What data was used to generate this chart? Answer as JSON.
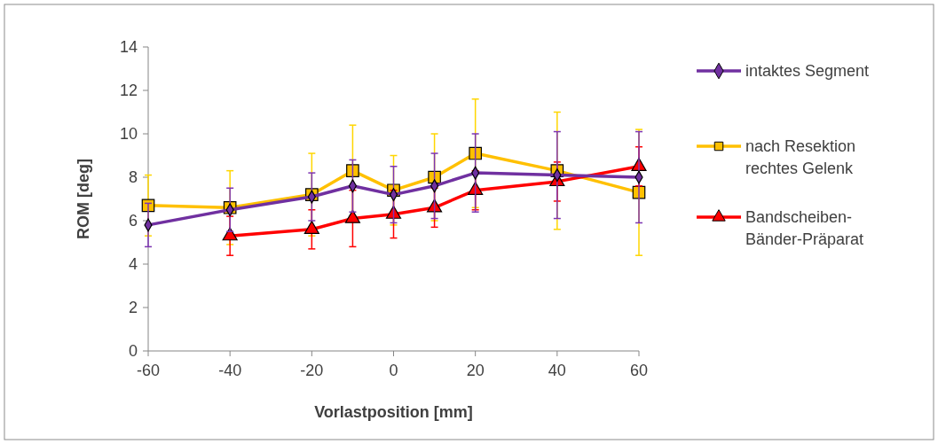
{
  "chart_data": {
    "type": "line",
    "xlabel": "Vorlastposition  [mm]",
    "ylabel": "ROM [deg]",
    "x": [
      -60,
      -40,
      -20,
      -10,
      0,
      10,
      20,
      40,
      60
    ],
    "xlim": [
      -60,
      60
    ],
    "xticks": [
      -60,
      -40,
      -20,
      0,
      20,
      40,
      60
    ],
    "ylim": [
      0,
      14
    ],
    "yticks": [
      0,
      2,
      4,
      6,
      8,
      10,
      12,
      14
    ],
    "grid": false,
    "legend": "right",
    "line_style": "solid",
    "series": [
      {
        "name": "intaktes Segment",
        "color": "#7030a0",
        "marker": "diamond",
        "values": [
          5.8,
          6.5,
          7.1,
          7.6,
          7.2,
          7.6,
          8.2,
          8.1,
          8.0
        ],
        "errors": [
          1.0,
          1.0,
          1.1,
          1.2,
          1.3,
          1.5,
          1.8,
          2.0,
          2.1
        ]
      },
      {
        "name": "nach Resektion rechtes Gelenk",
        "color": "#ffc000",
        "marker": "square",
        "values": [
          6.7,
          6.6,
          7.2,
          8.3,
          7.4,
          8.0,
          9.1,
          8.3,
          7.3
        ],
        "errors": [
          1.4,
          1.7,
          1.9,
          2.1,
          1.6,
          2.0,
          2.5,
          2.7,
          2.9
        ]
      },
      {
        "name": "Bandscheiben-Bänder-Präparat",
        "color": "#ff0000",
        "marker": "triangle",
        "values": [
          null,
          5.3,
          5.6,
          6.1,
          6.3,
          6.6,
          7.4,
          7.8,
          8.5
        ],
        "errors": [
          null,
          0.9,
          0.9,
          1.3,
          1.1,
          0.9,
          0.9,
          0.9,
          0.9
        ]
      }
    ]
  }
}
